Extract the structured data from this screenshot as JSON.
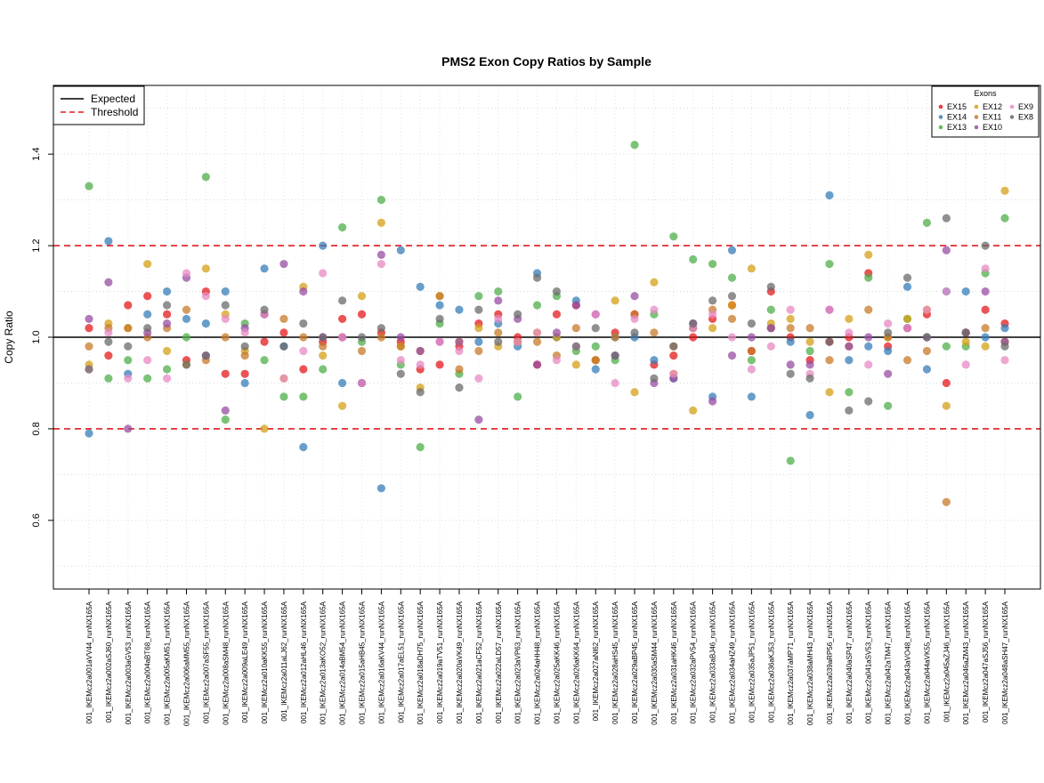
{
  "chart_data": {
    "type": "scatter",
    "title": "PMS2 Exon Copy Ratios by Sample",
    "xlabel": "",
    "ylabel": "Copy Ratio",
    "ylim": [
      0.45,
      1.55
    ],
    "y_ticks": [
      0.6,
      0.8,
      1.0,
      1.2,
      1.4
    ],
    "grid": true,
    "reference_lines": [
      {
        "name": "Expected",
        "y": 1.0,
        "style": "solid",
        "color": "#000000"
      },
      {
        "name": "Threshold",
        "y": 1.2,
        "style": "dashed",
        "color": "#e41a1c"
      },
      {
        "name": "Threshold",
        "y": 0.8,
        "style": "dashed",
        "color": "#e41a1c"
      }
    ],
    "line_legend": {
      "position": "top-left",
      "entries": [
        {
          "label": "Expected",
          "style": "solid",
          "color": "#000000"
        },
        {
          "label": "Threshold",
          "style": "dashed",
          "color": "#e41a1c"
        }
      ]
    },
    "point_legend": {
      "title": "Exons",
      "position": "top-right"
    },
    "categories": [
      "001_IKEMcz2a001aVV44_runNX165A",
      "001_IKEMcz2a002aSJ60_runNX165A",
      "001_IKEMcz2a003aGV53_runNX165A",
      "001_IKEMcz2a004aBT68_runNX165A",
      "001_IKEMcz2a005aKM51_runNX165A",
      "001_IKEMcz2a006aMM55_runNX165A",
      "001_IKEMcz2a007aSF55_runNX165A",
      "001_IKEMcz2a008aSM48_runNX165A",
      "001_IKEMcz2a009aLE49_runNX165A",
      "001_IKEMcz2a010aKK55_runNX165A",
      "001_IKEMcz2a011aLJ62_runNX165A",
      "001_IKEMcz2a012aHL46_runNX165A",
      "001_IKEMcz2a013aKO52_runNX165A",
      "001_IKEMcz2a014aBM54_runNX165A",
      "001_IKEMcz2a015aHB45_runNX165A",
      "001_IKEMcz2a016aKV44_runNX165A",
      "001_IKEMcz2a017aEL51_runNX165A",
      "001_IKEMcz2a018aDH75_runNX165A",
      "001_IKEMcz2a019aTV51_runNX165A",
      "001_IKEMcz2a020aVK49_runNX165A",
      "001_IKEMcz2a021aCF52_runNX165A",
      "001_IKEMcz2a022aLD57_runNX165A",
      "001_IKEMcz2a023aVP63_runNX165A",
      "001_IKEMcz2a024aHH48_runNX165A",
      "001_IKEMcz2a025aKK46_runNX165A",
      "001_IKEMcz2a026aKK64_runNX165A",
      "001_IKEMcz2a027aNl62_runNX165A",
      "001_IKEMcz2a028aHS45_runNX165A",
      "001_IKEMcz2a029aBP45_runNX165A",
      "001_IKEMcz2a030aSM44_runNX165A",
      "001_IKEMcz2a031aHK46_runNX165A",
      "001_IKEMcz2a032aPV54_runNX165A",
      "001_IKEMcz2a033aBJ46_runNX165A",
      "001_IKEMcz2a034aHZ49_runNX165A",
      "001_IKEMcz2a035aJP51_runNX165A",
      "001_IKEMcz2a036aKJ53_runNX165A",
      "001_IKEMcz2a037aMP71_runNX165A",
      "001_IKEMcz2a038aMH43_runNX165A",
      "001_IKEMcz2a039aRP56_runNX165A",
      "001_IKEMcz2a040aSP47_runNX165A",
      "001_IKEMcz2a041aSV53_runNX165A",
      "001_IKEMcz2a042aTM47_runNX165A",
      "001_IKEMcz2a043aVO48_runNX165A",
      "001_IKEMcz2a044aVK55_runNX165A",
      "001_IKEMcz2a045aZJ46_runNX165A",
      "001_IKEMcz2a046aZM43_runNX165A",
      "001_IKEMcz2a047aSJ56_runNX165A",
      "001_IKEMcz2a048aSH47_runNX165A"
    ],
    "series": [
      {
        "name": "EX15",
        "color": "#e41a1c",
        "values": [
          1.02,
          0.96,
          1.07,
          1.09,
          1.05,
          0.95,
          1.1,
          0.92,
          0.92,
          0.99,
          1.01,
          0.93,
          0.99,
          1.04,
          1.05,
          1.01,
          0.99,
          0.93,
          0.94,
          0.98,
          1.03,
          1.05,
          1.0,
          0.94,
          1.05,
          1.07,
          0.95,
          1.01,
          1.05,
          0.94,
          0.96,
          1.0,
          1.04,
          1.07,
          0.97,
          1.1,
          1.0,
          0.95,
          0.99,
          1.0,
          1.14,
          0.98,
          1.02,
          1.05,
          0.9,
          1.01,
          1.06,
          1.03
        ]
      },
      {
        "name": "EX14",
        "color": "#377eb8",
        "values": [
          0.79,
          1.21,
          0.92,
          1.05,
          1.1,
          1.04,
          1.03,
          1.1,
          0.9,
          1.15,
          0.98,
          0.76,
          1.2,
          0.9,
          0.9,
          0.67,
          1.19,
          1.11,
          1.07,
          1.06,
          0.99,
          1.03,
          0.98,
          1.14,
          1.0,
          1.08,
          0.93,
          1.0,
          1.0,
          0.95,
          0.91,
          1.02,
          0.87,
          1.19,
          0.87,
          1.02,
          0.99,
          0.83,
          1.31,
          0.95,
          0.98,
          0.97,
          1.11,
          0.93,
          1.1,
          1.1,
          1.0,
          1.02
        ]
      },
      {
        "name": "EX13",
        "color": "#4daf4a",
        "values": [
          1.33,
          0.91,
          0.95,
          0.91,
          0.93,
          1.0,
          1.35,
          0.82,
          1.03,
          0.95,
          0.87,
          0.87,
          0.93,
          1.24,
          0.99,
          1.3,
          0.94,
          0.76,
          1.03,
          0.92,
          1.09,
          1.1,
          0.87,
          1.07,
          1.09,
          0.97,
          0.98,
          0.95,
          1.42,
          1.05,
          1.22,
          1.17,
          1.16,
          1.13,
          0.95,
          1.06,
          0.73,
          0.97,
          1.16,
          0.88,
          1.13,
          0.85,
          1.04,
          1.25,
          0.98,
          0.98,
          1.14,
          1.26
        ]
      },
      {
        "name": "EX12",
        "color": "#d4a017",
        "values": [
          0.94,
          1.03,
          1.02,
          1.16,
          0.97,
          0.94,
          1.15,
          1.05,
          0.97,
          0.8,
          0.91,
          1.11,
          0.96,
          0.85,
          1.09,
          1.25,
          0.98,
          0.89,
          1.09,
          0.99,
          1.02,
          0.98,
          0.99,
          1.01,
          1.0,
          0.94,
          0.95,
          1.08,
          0.88,
          1.12,
          0.92,
          0.84,
          1.02,
          1.07,
          1.15,
          1.03,
          1.04,
          0.99,
          0.88,
          1.04,
          1.18,
          1.0,
          1.04,
          1.06,
          0.85,
          0.99,
          0.98,
          1.32
        ]
      },
      {
        "name": "EX11",
        "color": "#c77a2a",
        "values": [
          0.98,
          1.02,
          1.02,
          1.0,
          1.02,
          1.06,
          0.95,
          1.0,
          0.96,
          1.05,
          1.04,
          1.0,
          0.98,
          1.0,
          0.97,
          1.0,
          0.98,
          0.97,
          1.09,
          0.93,
          0.97,
          1.01,
          0.99,
          0.99,
          0.96,
          1.02,
          0.95,
          1.0,
          1.05,
          1.01,
          0.98,
          1.02,
          1.06,
          1.04,
          0.97,
          1.02,
          1.02,
          1.02,
          0.95,
          0.98,
          1.06,
          1.0,
          0.95,
          0.97,
          0.64,
          1.01,
          1.02,
          0.99
        ]
      },
      {
        "name": "EX10",
        "color": "#984ea3",
        "values": [
          1.04,
          1.12,
          0.8,
          1.01,
          1.03,
          1.13,
          0.96,
          0.84,
          1.02,
          1.05,
          1.16,
          1.1,
          1.0,
          1.0,
          0.9,
          1.18,
          1.0,
          0.97,
          0.99,
          0.99,
          0.82,
          1.08,
          1.04,
          0.94,
          1.01,
          1.07,
          1.05,
          0.96,
          1.09,
          0.9,
          0.91,
          1.03,
          0.86,
          0.96,
          1.0,
          1.02,
          0.94,
          0.94,
          1.06,
          0.98,
          1.0,
          0.92,
          1.02,
          1.0,
          1.19,
          1.01,
          1.1,
          0.99
        ]
      },
      {
        "name": "EX9",
        "color": "#e78ac3",
        "values": [
          0.93,
          1.01,
          0.91,
          0.95,
          0.91,
          1.14,
          1.09,
          1.04,
          1.01,
          1.05,
          0.91,
          0.97,
          1.14,
          1.0,
          0.9,
          1.16,
          0.95,
          0.94,
          0.99,
          0.97,
          0.91,
          1.04,
          0.99,
          1.01,
          0.95,
          0.98,
          1.05,
          0.9,
          1.04,
          1.06,
          0.92,
          1.02,
          1.05,
          1.0,
          0.93,
          0.98,
          1.06,
          0.92,
          1.06,
          1.01,
          0.94,
          1.03,
          1.02,
          1.06,
          1.1,
          0.94,
          1.15,
          0.95
        ]
      },
      {
        "name": "EX8",
        "color": "#6b6b6b",
        "values": [
          0.93,
          0.99,
          0.98,
          1.02,
          1.07,
          0.94,
          0.96,
          1.07,
          0.98,
          1.06,
          0.98,
          1.03,
          1.0,
          1.08,
          1.0,
          1.02,
          0.92,
          0.88,
          1.04,
          0.89,
          1.06,
          0.99,
          1.05,
          1.13,
          1.1,
          0.98,
          1.02,
          0.96,
          1.01,
          0.91,
          0.98,
          1.03,
          1.08,
          1.09,
          1.03,
          1.11,
          0.92,
          0.91,
          0.99,
          0.84,
          0.86,
          1.01,
          1.13,
          1.0,
          1.26,
          1.01,
          1.2,
          0.98
        ]
      }
    ]
  }
}
